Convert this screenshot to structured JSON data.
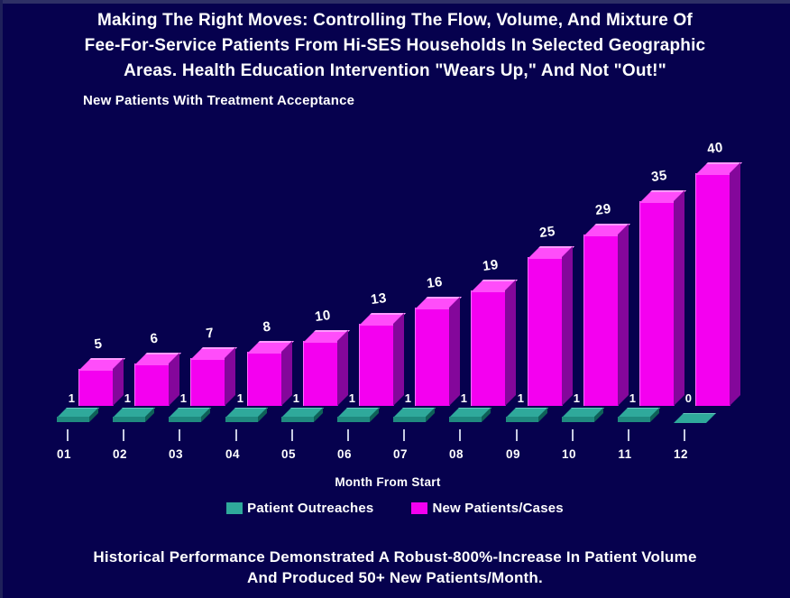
{
  "title": {
    "lines": [
      "Making The Right Moves: Controlling The Flow, Volume, And Mixture Of",
      "Fee-For-Service Patients From Hi-SES Households In Selected Geographic",
      "Areas. Health Education Intervention \"Wears Up,\" And Not \"Out!\""
    ]
  },
  "footer": {
    "lines": [
      "Historical Performance Demonstrated A Robust-800%-Increase In Patient Volume",
      "And Produced 50+ New Patients/Month."
    ]
  },
  "chart_data": {
    "type": "bar",
    "title": "New Patients With Treatment Acceptance",
    "xlabel": "Month From Start",
    "ylabel": "",
    "categories": [
      "01",
      "02",
      "03",
      "04",
      "05",
      "06",
      "07",
      "08",
      "09",
      "10",
      "11",
      "12"
    ],
    "series": [
      {
        "name": "Patient Outreaches",
        "color": "#2fa99b",
        "color_front": "#1f8a7f",
        "color_side": "#0e6158",
        "values": [
          1,
          1,
          1,
          1,
          1,
          1,
          1,
          1,
          1,
          1,
          1,
          0
        ]
      },
      {
        "name": "New Patients/Cases",
        "color": "#f400f0",
        "color_top": "#ff4dfa",
        "color_side": "#84079b",
        "values": [
          5,
          6,
          7,
          8,
          10,
          13,
          16,
          19,
          25,
          29,
          35,
          40
        ]
      }
    ],
    "value_labels": true,
    "grid": false,
    "legend_position": "bottom",
    "ylim": [
      0,
      40
    ],
    "background": "#06014e",
    "text_color": "#ffffff"
  }
}
